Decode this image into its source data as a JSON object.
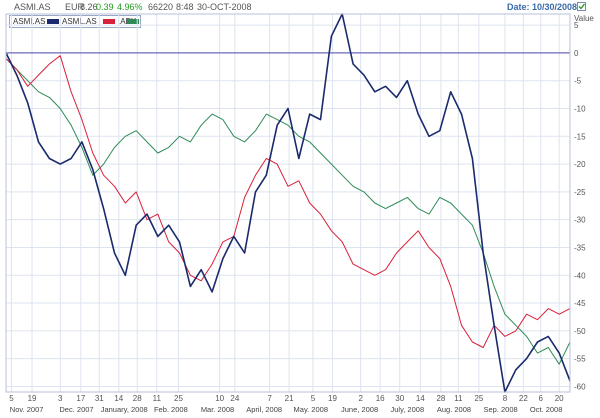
{
  "header": {
    "symbol": "ASMI.AS",
    "currency": "EUR",
    "last": "8.26",
    "change": "0.39",
    "change_pct": "4.96%",
    "volume": "66220",
    "time": "8:48",
    "date": "30-OCT-2008",
    "date_label": "Date: 10/30/2008"
  },
  "legend": {
    "title": "ASMI.AS",
    "items": [
      {
        "name": "ASML.AS",
        "color": "#1a2a6c"
      },
      {
        "name": ".AEX",
        "color": "#d8213a"
      },
      {
        "name": "",
        "color": "#2e8b57"
      }
    ]
  },
  "colors": {
    "accent": "#3a6aa8",
    "positive": "#1f9d1f",
    "grid": "#dde3ef",
    "zero_line": "#6a6ab8"
  },
  "chart_data": {
    "type": "line",
    "ylabel": "Value",
    "ylim": [
      -61,
      7
    ],
    "yticks": [
      5,
      0,
      -5,
      -10,
      -15,
      -20,
      -25,
      -30,
      -35,
      -40,
      -45,
      -50,
      -55,
      -60
    ],
    "xlim": [
      0,
      52
    ],
    "xticks": [
      {
        "x": 0.5,
        "label": "5"
      },
      {
        "x": 2.4,
        "label": "19"
      },
      {
        "x": 5.0,
        "label": "3"
      },
      {
        "x": 6.9,
        "label": "17"
      },
      {
        "x": 8.6,
        "label": "31"
      },
      {
        "x": 10.4,
        "label": "14"
      },
      {
        "x": 12.1,
        "label": "28"
      },
      {
        "x": 13.9,
        "label": "11"
      },
      {
        "x": 15.9,
        "label": "25"
      },
      {
        "x": 19.7,
        "label": "10"
      },
      {
        "x": 21.1,
        "label": "24"
      },
      {
        "x": 24.3,
        "label": "7"
      },
      {
        "x": 26.1,
        "label": "21"
      },
      {
        "x": 28.3,
        "label": "5"
      },
      {
        "x": 30.1,
        "label": "19"
      },
      {
        "x": 32.7,
        "label": "2"
      },
      {
        "x": 34.5,
        "label": "16"
      },
      {
        "x": 36.3,
        "label": "30"
      },
      {
        "x": 38.2,
        "label": "14"
      },
      {
        "x": 40.1,
        "label": "28"
      },
      {
        "x": 41.7,
        "label": "11"
      },
      {
        "x": 43.6,
        "label": "25"
      },
      {
        "x": 46.0,
        "label": "8"
      },
      {
        "x": 47.7,
        "label": "22"
      },
      {
        "x": 49.3,
        "label": "6"
      },
      {
        "x": 51.0,
        "label": "20"
      }
    ],
    "months": [
      {
        "x": 1.9,
        "label": "Nov. 2007"
      },
      {
        "x": 6.5,
        "label": "Dec. 2007"
      },
      {
        "x": 10.9,
        "label": "January, 2008"
      },
      {
        "x": 15.2,
        "label": "Feb. 2008"
      },
      {
        "x": 19.5,
        "label": "Mar. 2008"
      },
      {
        "x": 23.8,
        "label": "April, 2008"
      },
      {
        "x": 28.1,
        "label": "May. 2008"
      },
      {
        "x": 32.6,
        "label": "June, 2008"
      },
      {
        "x": 37.0,
        "label": "July, 2008"
      },
      {
        "x": 41.3,
        "label": "Aug. 2008"
      },
      {
        "x": 45.6,
        "label": "Sep. 2008"
      },
      {
        "x": 49.8,
        "label": "Oct. 2008"
      }
    ],
    "series": [
      {
        "name": "ASML.AS",
        "color": "#1a2a6c",
        "width": 1.6,
        "x": [
          0,
          1,
          2,
          3,
          4,
          5,
          6,
          7,
          8,
          9,
          10,
          11,
          12,
          13,
          14,
          15,
          16,
          17,
          18,
          19,
          20,
          21,
          22,
          23,
          24,
          25,
          26,
          27,
          28,
          29,
          30,
          31,
          32,
          33,
          34,
          35,
          36,
          37,
          38,
          39,
          40,
          41,
          42,
          43,
          44,
          45,
          46,
          47,
          48,
          49,
          50,
          51,
          52
        ],
        "y": [
          0,
          -4,
          -9,
          -16,
          -19,
          -20,
          -19,
          -16,
          -21,
          -28,
          -36,
          -40,
          -31,
          -29,
          -33,
          -31,
          -34,
          -42,
          -39,
          -43,
          -37,
          -33,
          -36,
          -25,
          -22,
          -13,
          -10,
          -19,
          -11,
          -12,
          3,
          7,
          -2,
          -4,
          -7,
          -6,
          -8,
          -5,
          -11,
          -15,
          -14,
          -7,
          -11,
          -19,
          -36,
          -49,
          -61,
          -57,
          -55,
          -52,
          -51,
          -54,
          -59
        ]
      },
      {
        "name": ".AEX",
        "color": "#d8213a",
        "width": 1.0,
        "x": [
          0,
          1,
          2,
          3,
          4,
          5,
          6,
          7,
          8,
          9,
          10,
          11,
          12,
          13,
          14,
          15,
          16,
          17,
          18,
          19,
          20,
          21,
          22,
          23,
          24,
          25,
          26,
          27,
          28,
          29,
          30,
          31,
          32,
          33,
          34,
          35,
          36,
          37,
          38,
          39,
          40,
          41,
          42,
          43,
          44,
          45,
          46,
          47,
          48,
          49,
          50,
          51,
          52
        ],
        "y": [
          -1,
          -3,
          -6,
          -4,
          -2,
          -0.5,
          -7,
          -12,
          -18,
          -22,
          -24,
          -27,
          -25,
          -30,
          -29,
          -34,
          -36,
          -40,
          -41,
          -38,
          -34,
          -33,
          -26,
          -22,
          -19,
          -20,
          -24,
          -23,
          -27,
          -29,
          -32,
          -34,
          -38,
          -39,
          -40,
          -39,
          -36,
          -34,
          -32,
          -35,
          -37,
          -42,
          -49,
          -52,
          -53,
          -49,
          -51,
          -50,
          -47,
          -48,
          -46,
          -47,
          -46
        ]
      },
      {
        "name": "",
        "color": "#2e8b57",
        "width": 1.0,
        "x": [
          0,
          1,
          2,
          3,
          4,
          5,
          6,
          7,
          8,
          9,
          10,
          11,
          12,
          13,
          14,
          15,
          16,
          17,
          18,
          19,
          20,
          21,
          22,
          23,
          24,
          25,
          26,
          27,
          28,
          29,
          30,
          31,
          32,
          33,
          34,
          35,
          36,
          37,
          38,
          39,
          40,
          41,
          42,
          43,
          44,
          45,
          46,
          47,
          48,
          49,
          50,
          51,
          52
        ],
        "y": [
          -1,
          -3,
          -5,
          -7,
          -8,
          -10,
          -13,
          -17,
          -22,
          -20,
          -17,
          -15,
          -14,
          -16,
          -18,
          -17,
          -15,
          -16,
          -13,
          -11,
          -12,
          -15,
          -16,
          -14,
          -11,
          -12,
          -13,
          -15,
          -16,
          -18,
          -20,
          -22,
          -24,
          -25,
          -27,
          -28,
          -27,
          -26,
          -28,
          -29,
          -26,
          -27,
          -29,
          -31,
          -36,
          -42,
          -47,
          -49,
          -51,
          -54,
          -53,
          -56,
          -52
        ]
      }
    ]
  }
}
